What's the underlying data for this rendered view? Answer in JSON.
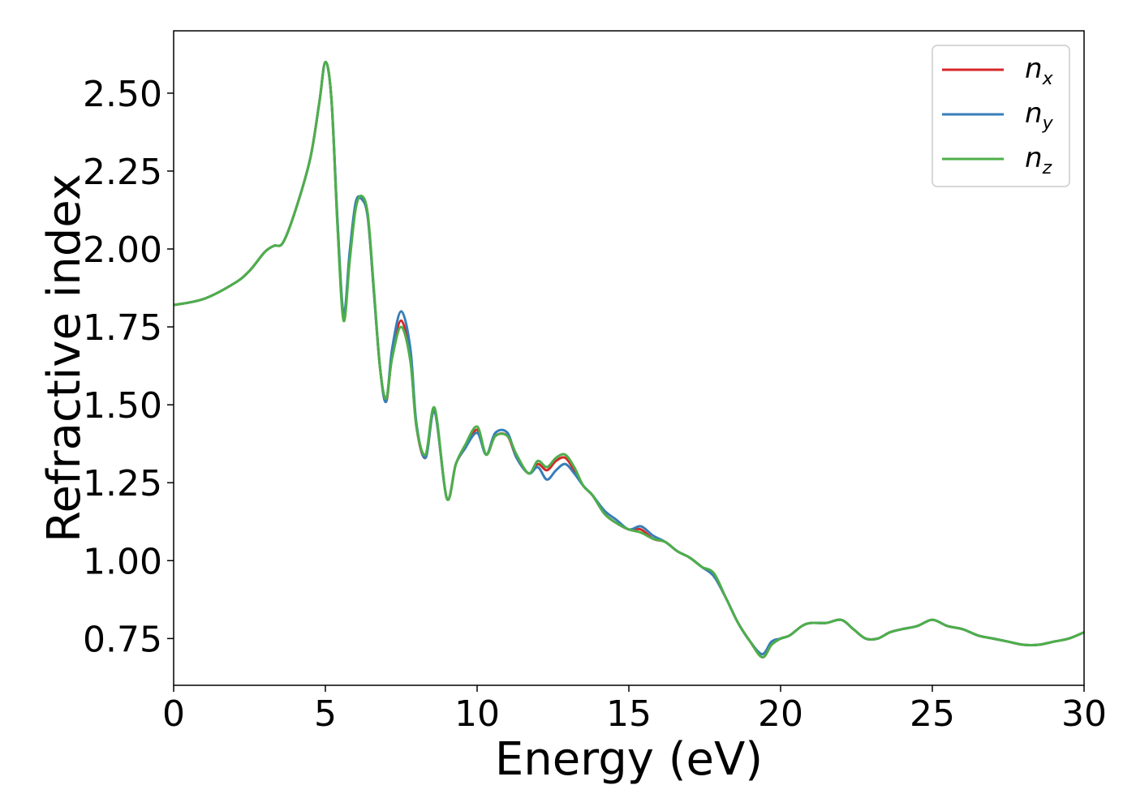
{
  "chart_data": {
    "type": "line",
    "xlabel": "Energy (eV)",
    "ylabel": "Refractive index",
    "xlim": [
      0,
      30
    ],
    "ylim": [
      0.6,
      2.7
    ],
    "xticks": [
      0,
      5,
      10,
      15,
      20,
      25,
      30
    ],
    "xtick_labels": [
      "0",
      "5",
      "10",
      "15",
      "20",
      "25",
      "30"
    ],
    "yticks": [
      0.75,
      1.0,
      1.25,
      1.5,
      1.75,
      2.0,
      2.25,
      2.5
    ],
    "ytick_labels": [
      "0.75",
      "1.00",
      "1.25",
      "1.50",
      "1.75",
      "2.00",
      "2.25",
      "2.50"
    ],
    "grid": false,
    "legend_position": "top-right",
    "series": [
      {
        "name": "n_x",
        "label_main": "n",
        "label_sub": "x",
        "color": "#d62728",
        "x": [
          0,
          1,
          2,
          2.5,
          3,
          3.3,
          3.6,
          4,
          4.5,
          4.8,
          5.0,
          5.2,
          5.4,
          5.6,
          5.8,
          6.0,
          6.2,
          6.4,
          6.6,
          6.8,
          7.0,
          7.2,
          7.5,
          7.8,
          8.0,
          8.3,
          8.6,
          9.0,
          9.3,
          9.6,
          10.0,
          10.3,
          10.6,
          11.0,
          11.3,
          11.7,
          12.0,
          12.3,
          12.6,
          12.9,
          13.2,
          13.5,
          13.8,
          14.2,
          14.6,
          15.0,
          15.4,
          15.8,
          16.2,
          16.6,
          17.0,
          17.4,
          17.8,
          18.2,
          18.6,
          19.0,
          19.4,
          19.7,
          20.0,
          20.3,
          20.7,
          21.0,
          21.5,
          22.0,
          22.4,
          22.8,
          23.2,
          23.6,
          24.0,
          24.5,
          25.0,
          25.5,
          26.0,
          26.5,
          27.0,
          27.5,
          28.0,
          28.5,
          29.0,
          29.5,
          30.0
        ],
        "y": [
          1.82,
          1.84,
          1.89,
          1.93,
          1.99,
          2.01,
          2.02,
          2.12,
          2.29,
          2.47,
          2.6,
          2.48,
          2.08,
          1.78,
          1.98,
          2.14,
          2.16,
          2.1,
          1.86,
          1.62,
          1.51,
          1.66,
          1.77,
          1.65,
          1.43,
          1.33,
          1.48,
          1.2,
          1.31,
          1.36,
          1.42,
          1.34,
          1.4,
          1.4,
          1.33,
          1.28,
          1.31,
          1.29,
          1.32,
          1.33,
          1.29,
          1.24,
          1.21,
          1.15,
          1.12,
          1.1,
          1.1,
          1.07,
          1.06,
          1.03,
          1.01,
          0.98,
          0.95,
          0.88,
          0.8,
          0.74,
          0.69,
          0.73,
          0.75,
          0.76,
          0.79,
          0.8,
          0.8,
          0.81,
          0.78,
          0.75,
          0.75,
          0.77,
          0.78,
          0.79,
          0.81,
          0.79,
          0.78,
          0.76,
          0.75,
          0.74,
          0.73,
          0.73,
          0.74,
          0.75,
          0.77
        ]
      },
      {
        "name": "n_y",
        "label_main": "n",
        "label_sub": "y",
        "color": "#377eb8",
        "x": [
          0,
          1,
          2,
          2.5,
          3,
          3.3,
          3.6,
          4,
          4.5,
          4.8,
          5.0,
          5.2,
          5.4,
          5.6,
          5.8,
          6.0,
          6.2,
          6.4,
          6.6,
          6.8,
          7.0,
          7.2,
          7.5,
          7.8,
          8.0,
          8.3,
          8.6,
          9.0,
          9.3,
          9.6,
          10.0,
          10.3,
          10.6,
          11.0,
          11.3,
          11.7,
          12.0,
          12.3,
          12.6,
          12.9,
          13.2,
          13.5,
          13.8,
          14.2,
          14.6,
          15.0,
          15.4,
          15.8,
          16.2,
          16.6,
          17.0,
          17.4,
          17.8,
          18.2,
          18.6,
          19.0,
          19.4,
          19.7,
          20.0,
          20.3,
          20.7,
          21.0,
          21.5,
          22.0,
          22.4,
          22.8,
          23.2,
          23.6,
          24.0,
          24.5,
          25.0,
          25.5,
          26.0,
          26.5,
          27.0,
          27.5,
          28.0,
          28.5,
          29.0,
          29.5,
          30.0
        ],
        "y": [
          1.82,
          1.84,
          1.89,
          1.93,
          1.99,
          2.01,
          2.02,
          2.12,
          2.29,
          2.47,
          2.6,
          2.48,
          2.09,
          1.79,
          1.99,
          2.15,
          2.16,
          2.1,
          1.86,
          1.62,
          1.51,
          1.68,
          1.8,
          1.68,
          1.44,
          1.33,
          1.48,
          1.2,
          1.31,
          1.36,
          1.41,
          1.34,
          1.41,
          1.41,
          1.33,
          1.28,
          1.3,
          1.26,
          1.29,
          1.31,
          1.28,
          1.24,
          1.21,
          1.16,
          1.13,
          1.1,
          1.11,
          1.08,
          1.06,
          1.03,
          1.01,
          0.98,
          0.95,
          0.88,
          0.8,
          0.74,
          0.7,
          0.74,
          0.75,
          0.76,
          0.79,
          0.8,
          0.8,
          0.81,
          0.78,
          0.75,
          0.75,
          0.77,
          0.78,
          0.79,
          0.81,
          0.79,
          0.78,
          0.76,
          0.75,
          0.74,
          0.73,
          0.73,
          0.74,
          0.75,
          0.77
        ]
      },
      {
        "name": "n_z",
        "label_main": "n",
        "label_sub": "z",
        "color": "#4daf4a",
        "x": [
          0,
          1,
          2,
          2.5,
          3,
          3.3,
          3.6,
          4,
          4.5,
          4.8,
          5.0,
          5.2,
          5.4,
          5.6,
          5.8,
          6.0,
          6.2,
          6.4,
          6.6,
          6.8,
          7.0,
          7.2,
          7.5,
          7.8,
          8.0,
          8.3,
          8.6,
          9.0,
          9.3,
          9.6,
          10.0,
          10.3,
          10.6,
          11.0,
          11.3,
          11.7,
          12.0,
          12.3,
          12.6,
          12.9,
          13.2,
          13.5,
          13.8,
          14.2,
          14.6,
          15.0,
          15.4,
          15.8,
          16.2,
          16.6,
          17.0,
          17.4,
          17.8,
          18.2,
          18.6,
          19.0,
          19.4,
          19.7,
          20.0,
          20.3,
          20.7,
          21.0,
          21.5,
          22.0,
          22.4,
          22.8,
          23.2,
          23.6,
          24.0,
          24.5,
          25.0,
          25.5,
          26.0,
          26.5,
          27.0,
          27.5,
          28.0,
          28.5,
          29.0,
          29.5,
          30.0
        ],
        "y": [
          1.82,
          1.84,
          1.89,
          1.93,
          1.99,
          2.01,
          2.02,
          2.12,
          2.29,
          2.47,
          2.6,
          2.48,
          2.07,
          1.77,
          1.96,
          2.13,
          2.17,
          2.11,
          1.87,
          1.62,
          1.52,
          1.65,
          1.75,
          1.64,
          1.43,
          1.34,
          1.49,
          1.2,
          1.31,
          1.37,
          1.43,
          1.34,
          1.4,
          1.4,
          1.34,
          1.28,
          1.32,
          1.3,
          1.33,
          1.34,
          1.3,
          1.24,
          1.21,
          1.15,
          1.12,
          1.1,
          1.09,
          1.07,
          1.06,
          1.03,
          1.01,
          0.98,
          0.96,
          0.88,
          0.8,
          0.74,
          0.69,
          0.73,
          0.75,
          0.76,
          0.79,
          0.8,
          0.8,
          0.81,
          0.78,
          0.75,
          0.75,
          0.77,
          0.78,
          0.79,
          0.81,
          0.79,
          0.78,
          0.76,
          0.75,
          0.74,
          0.73,
          0.73,
          0.74,
          0.75,
          0.77
        ]
      }
    ]
  }
}
